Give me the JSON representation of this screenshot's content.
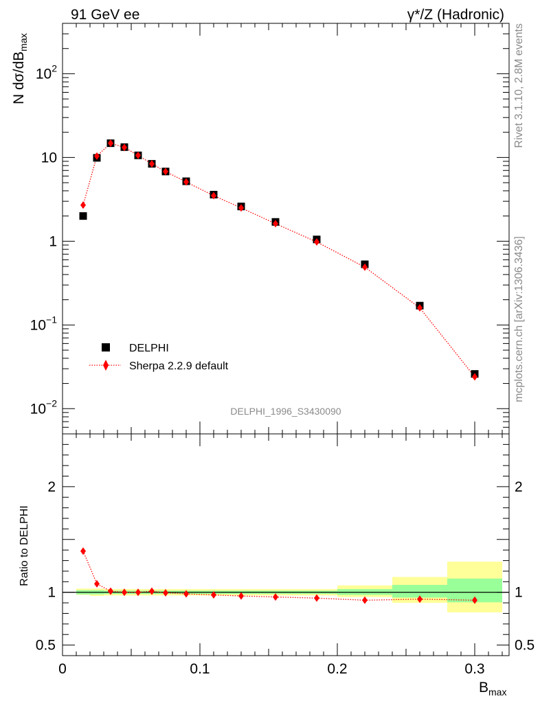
{
  "header": {
    "left": "91 GeV ee",
    "right": "γ*/Z (Hadronic)"
  },
  "side_labels": {
    "top": "Rivet 3.1.10,  2.8M events",
    "bottom": "mcplots.cern.ch [arXiv:1306.3436]"
  },
  "watermark": "DELPHI_1996_S3430090",
  "colors": {
    "data": "#000000",
    "mc": "#ff0000",
    "band_inner": "#99ff99",
    "band_outer": "#ffff99"
  },
  "chart_data": [
    {
      "type": "scatter",
      "ylabel": "N dσ/dB",
      "ylabel_sub": "max",
      "xlim": [
        0,
        0.325
      ],
      "ylim": [
        0.005,
        400
      ],
      "log_y": true,
      "y_ticks": [
        {
          "v": 0.01,
          "base": "10",
          "exp": "−2"
        },
        {
          "v": 0.1,
          "base": "10",
          "exp": "−1"
        },
        {
          "v": 1,
          "base": "1",
          "exp": ""
        },
        {
          "v": 10,
          "base": "10",
          "exp": ""
        },
        {
          "v": 100,
          "base": "10",
          "exp": "2"
        }
      ],
      "legend_position": "bottom-left",
      "series": [
        {
          "name": "DELPHI",
          "marker": "square",
          "x": [
            0.015,
            0.025,
            0.035,
            0.045,
            0.055,
            0.065,
            0.075,
            0.09,
            0.11,
            0.13,
            0.155,
            0.185,
            0.22,
            0.26,
            0.3
          ],
          "y": [
            2.0,
            9.9,
            14.8,
            13.3,
            10.6,
            8.4,
            6.8,
            5.2,
            3.6,
            2.6,
            1.7,
            1.05,
            0.53,
            0.17,
            0.026
          ]
        },
        {
          "name": "Sherpa 2.2.9 default",
          "marker": "diamond",
          "line": "dotted",
          "x": [
            0.015,
            0.025,
            0.035,
            0.045,
            0.055,
            0.065,
            0.075,
            0.09,
            0.11,
            0.13,
            0.155,
            0.185,
            0.22,
            0.26,
            0.3
          ],
          "y": [
            2.7,
            10.4,
            14.8,
            13.2,
            10.6,
            8.4,
            6.8,
            5.1,
            3.5,
            2.5,
            1.62,
            0.98,
            0.49,
            0.16,
            0.024
          ]
        }
      ]
    },
    {
      "type": "scatter",
      "ylabel": "Ratio to DELPHI",
      "xlabel": "B",
      "xlabel_sub": "max",
      "xlim": [
        0,
        0.325
      ],
      "ylim": [
        0.4,
        2.5
      ],
      "x_ticks": [
        "0",
        "0.1",
        "0.2",
        "0.3"
      ],
      "y_ticks": [
        "0.5",
        "1",
        "2"
      ],
      "bands": [
        {
          "x0": 0.01,
          "x1": 0.02,
          "inner": [
            0.98,
            1.02
          ],
          "outer": [
            0.975,
            1.035
          ]
        },
        {
          "x0": 0.02,
          "x1": 0.03,
          "inner": [
            0.98,
            1.02
          ],
          "outer": [
            0.965,
            1.035
          ]
        },
        {
          "x0": 0.03,
          "x1": 0.04,
          "inner": [
            0.985,
            1.015
          ],
          "outer": [
            0.97,
            1.03
          ]
        },
        {
          "x0": 0.04,
          "x1": 0.05,
          "inner": [
            0.985,
            1.015
          ],
          "outer": [
            0.97,
            1.03
          ]
        },
        {
          "x0": 0.05,
          "x1": 0.06,
          "inner": [
            0.985,
            1.015
          ],
          "outer": [
            0.97,
            1.03
          ]
        },
        {
          "x0": 0.06,
          "x1": 0.07,
          "inner": [
            0.985,
            1.015
          ],
          "outer": [
            0.97,
            1.03
          ]
        },
        {
          "x0": 0.07,
          "x1": 0.08,
          "inner": [
            0.985,
            1.015
          ],
          "outer": [
            0.97,
            1.03
          ]
        },
        {
          "x0": 0.08,
          "x1": 0.1,
          "inner": [
            0.985,
            1.015
          ],
          "outer": [
            0.97,
            1.03
          ]
        },
        {
          "x0": 0.1,
          "x1": 0.12,
          "inner": [
            0.985,
            1.015
          ],
          "outer": [
            0.97,
            1.03
          ]
        },
        {
          "x0": 0.12,
          "x1": 0.14,
          "inner": [
            0.985,
            1.015
          ],
          "outer": [
            0.97,
            1.03
          ]
        },
        {
          "x0": 0.14,
          "x1": 0.17,
          "inner": [
            0.985,
            1.015
          ],
          "outer": [
            0.97,
            1.03
          ]
        },
        {
          "x0": 0.17,
          "x1": 0.2,
          "inner": [
            0.985,
            1.015
          ],
          "outer": [
            0.97,
            1.03
          ]
        },
        {
          "x0": 0.2,
          "x1": 0.24,
          "inner": [
            0.975,
            1.03
          ],
          "outer": [
            0.955,
            1.065
          ]
        },
        {
          "x0": 0.24,
          "x1": 0.28,
          "inner": [
            0.95,
            1.07
          ],
          "outer": [
            0.9,
            1.145
          ]
        },
        {
          "x0": 0.28,
          "x1": 0.32,
          "inner": [
            0.905,
            1.13
          ],
          "outer": [
            0.81,
            1.29
          ]
        }
      ],
      "series": [
        {
          "name": "Sherpa 2.2.9 default",
          "x": [
            0.015,
            0.025,
            0.035,
            0.045,
            0.055,
            0.065,
            0.075,
            0.09,
            0.11,
            0.13,
            0.155,
            0.185,
            0.22,
            0.26,
            0.3
          ],
          "y": [
            1.39,
            1.08,
            1.01,
            1.0,
            1.0,
            1.01,
            0.995,
            0.985,
            0.975,
            0.965,
            0.955,
            0.945,
            0.925,
            0.935,
            0.925
          ]
        }
      ]
    }
  ]
}
